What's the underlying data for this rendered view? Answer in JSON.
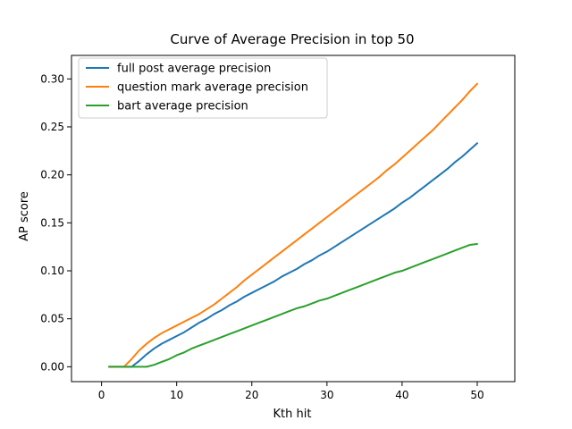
{
  "chart_data": {
    "type": "line",
    "title": "Curve of Average Precision in top 50",
    "xlabel": "Kth hit",
    "ylabel": "AP score",
    "xlim": [
      -4.0,
      55.0
    ],
    "ylim": [
      -0.0155,
      0.3245
    ],
    "xticks": [
      0,
      10,
      20,
      30,
      40,
      50
    ],
    "xtick_labels": [
      "0",
      "10",
      "20",
      "30",
      "40",
      "50"
    ],
    "yticks": [
      0.0,
      0.05,
      0.1,
      0.15,
      0.2,
      0.25,
      0.3
    ],
    "ytick_labels": [
      "0.00",
      "0.05",
      "0.10",
      "0.15",
      "0.20",
      "0.25",
      "0.30"
    ],
    "grid": false,
    "legend_position": "top-left",
    "x": [
      1,
      2,
      3,
      4,
      5,
      6,
      7,
      8,
      9,
      10,
      11,
      12,
      13,
      14,
      15,
      16,
      17,
      18,
      19,
      20,
      21,
      22,
      23,
      24,
      25,
      26,
      27,
      28,
      29,
      30,
      31,
      32,
      33,
      34,
      35,
      36,
      37,
      38,
      39,
      40,
      41,
      42,
      43,
      44,
      45,
      46,
      47,
      48,
      49,
      50
    ],
    "series": [
      {
        "name": "full post average precision",
        "color": "#1f77b4",
        "values": [
          0.0,
          0.0,
          0.0,
          0.0,
          0.006,
          0.013,
          0.019,
          0.024,
          0.028,
          0.032,
          0.036,
          0.041,
          0.046,
          0.05,
          0.055,
          0.059,
          0.064,
          0.068,
          0.073,
          0.077,
          0.081,
          0.085,
          0.089,
          0.094,
          0.098,
          0.102,
          0.107,
          0.111,
          0.116,
          0.12,
          0.125,
          0.13,
          0.135,
          0.14,
          0.145,
          0.15,
          0.155,
          0.16,
          0.165,
          0.171,
          0.176,
          0.182,
          0.188,
          0.194,
          0.2,
          0.206,
          0.213,
          0.219,
          0.226,
          0.233
        ]
      },
      {
        "name": "question mark average precision",
        "color": "#ff7f0e",
        "values": [
          0.0,
          0.0,
          0.0,
          0.008,
          0.017,
          0.024,
          0.03,
          0.035,
          0.039,
          0.043,
          0.047,
          0.051,
          0.055,
          0.06,
          0.065,
          0.071,
          0.077,
          0.083,
          0.09,
          0.096,
          0.102,
          0.108,
          0.114,
          0.12,
          0.126,
          0.132,
          0.138,
          0.144,
          0.15,
          0.156,
          0.162,
          0.168,
          0.174,
          0.18,
          0.186,
          0.192,
          0.198,
          0.205,
          0.211,
          0.218,
          0.225,
          0.232,
          0.239,
          0.246,
          0.254,
          0.262,
          0.27,
          0.278,
          0.287,
          0.295
        ]
      },
      {
        "name": "bart average precision",
        "color": "#2ca02c",
        "values": [
          0.0,
          0.0,
          0.0,
          0.0,
          0.0,
          0.0,
          0.002,
          0.005,
          0.008,
          0.012,
          0.015,
          0.019,
          0.022,
          0.025,
          0.028,
          0.031,
          0.034,
          0.037,
          0.04,
          0.043,
          0.046,
          0.049,
          0.052,
          0.055,
          0.058,
          0.061,
          0.063,
          0.066,
          0.069,
          0.071,
          0.074,
          0.077,
          0.08,
          0.083,
          0.086,
          0.089,
          0.092,
          0.095,
          0.098,
          0.1,
          0.103,
          0.106,
          0.109,
          0.112,
          0.115,
          0.118,
          0.121,
          0.124,
          0.127,
          0.128
        ]
      }
    ]
  }
}
